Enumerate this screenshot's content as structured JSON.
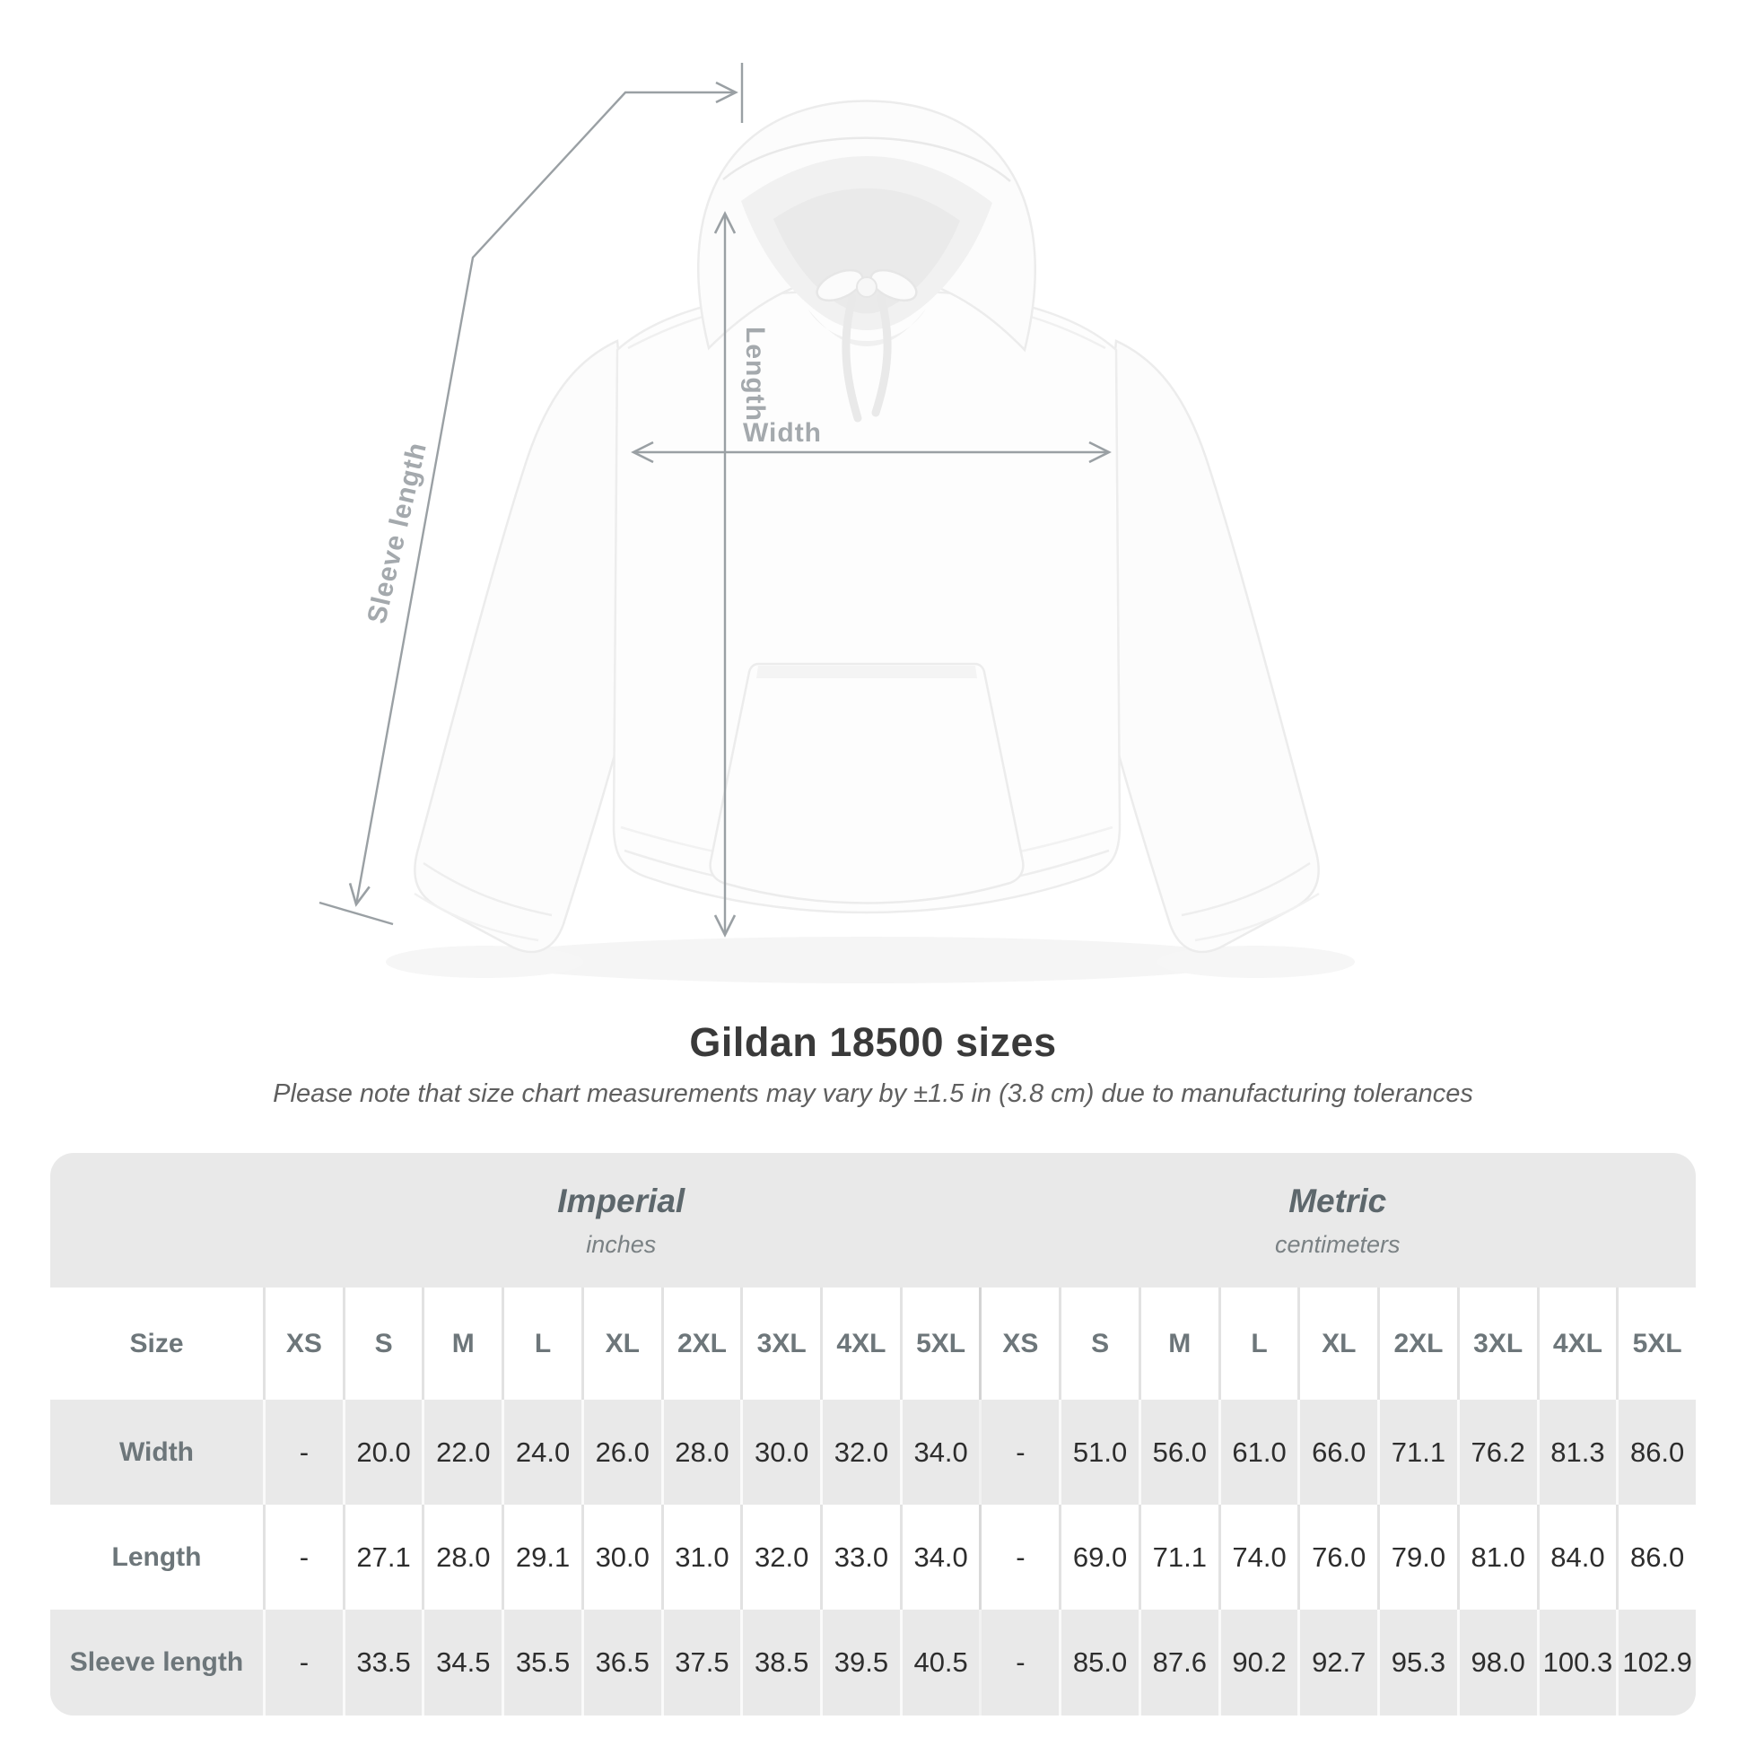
{
  "page": {
    "title": "Gildan 18500 sizes",
    "subtitle": "Please note that size chart measurements may vary by ±1.5 in (3.8 cm) due to manufacturing tolerances"
  },
  "diagram": {
    "width_label": "Width",
    "length_label": "Length",
    "sleeve_length_label": "Sleeve length",
    "line_color": "#9aa0a4",
    "label_color": "#a4a9ad",
    "garment": "white hooded sweatshirt front view"
  },
  "table": {
    "size_column_header": "Size",
    "groups": [
      {
        "title": "Imperial",
        "subtitle": "inches"
      },
      {
        "title": "Metric",
        "subtitle": "centimeters"
      }
    ],
    "size_headers": [
      "XS",
      "S",
      "M",
      "L",
      "XL",
      "2XL",
      "3XL",
      "4XL",
      "5XL"
    ],
    "rows": [
      {
        "label": "Width",
        "imperial": [
          "-",
          "20.0",
          "22.0",
          "24.0",
          "26.0",
          "28.0",
          "30.0",
          "32.0",
          "34.0"
        ],
        "metric": [
          "-",
          "51.0",
          "56.0",
          "61.0",
          "66.0",
          "71.1",
          "76.2",
          "81.3",
          "86.0"
        ]
      },
      {
        "label": "Length",
        "imperial": [
          "-",
          "27.1",
          "28.0",
          "29.1",
          "30.0",
          "31.0",
          "32.0",
          "33.0",
          "34.0"
        ],
        "metric": [
          "-",
          "69.0",
          "71.1",
          "74.0",
          "76.0",
          "79.0",
          "81.0",
          "84.0",
          "86.0"
        ]
      },
      {
        "label": "Sleeve length",
        "imperial": [
          "-",
          "33.5",
          "34.5",
          "35.5",
          "36.5",
          "37.5",
          "38.5",
          "39.5",
          "40.5"
        ],
        "metric": [
          "-",
          "85.0",
          "87.6",
          "90.2",
          "92.7",
          "95.3",
          "98.0",
          "100.3",
          "102.9"
        ]
      }
    ],
    "colors": {
      "row_gray": "#e9e9e9",
      "row_white": "#ffffff",
      "header_text": "#6d767a",
      "value_text": "#2d2d2d"
    }
  },
  "chart_data": {
    "type": "table",
    "title": "Gildan 18500 sizes",
    "note": "Please note that size chart measurements may vary by ±1.5 in (3.8 cm) due to manufacturing tolerances",
    "categories": [
      "XS",
      "S",
      "M",
      "L",
      "XL",
      "2XL",
      "3XL",
      "4XL",
      "5XL"
    ],
    "series": [
      {
        "name": "Width (inches)",
        "values": [
          null,
          20.0,
          22.0,
          24.0,
          26.0,
          28.0,
          30.0,
          32.0,
          34.0
        ]
      },
      {
        "name": "Length (inches)",
        "values": [
          null,
          27.1,
          28.0,
          29.1,
          30.0,
          31.0,
          32.0,
          33.0,
          34.0
        ]
      },
      {
        "name": "Sleeve length (inches)",
        "values": [
          null,
          33.5,
          34.5,
          35.5,
          36.5,
          37.5,
          38.5,
          39.5,
          40.5
        ]
      },
      {
        "name": "Width (centimeters)",
        "values": [
          null,
          51.0,
          56.0,
          61.0,
          66.0,
          71.1,
          76.2,
          81.3,
          86.0
        ]
      },
      {
        "name": "Length (centimeters)",
        "values": [
          null,
          69.0,
          71.1,
          74.0,
          76.0,
          79.0,
          81.0,
          84.0,
          86.0
        ]
      },
      {
        "name": "Sleeve length (centimeters)",
        "values": [
          null,
          85.0,
          87.6,
          90.2,
          92.7,
          95.3,
          98.0,
          100.3,
          102.9
        ]
      }
    ]
  }
}
